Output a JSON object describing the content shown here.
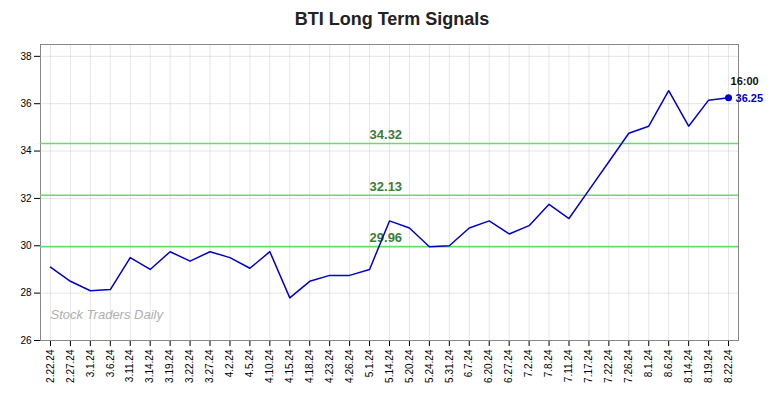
{
  "chart_data": {
    "type": "line",
    "title": "BTI Long Term Signals",
    "categories": [
      "2.22.24",
      "2.27.24",
      "3.1.24",
      "3.6.24",
      "3.11.24",
      "3.14.24",
      "3.19.24",
      "3.22.24",
      "3.27.24",
      "4.2.24",
      "4.5.24",
      "4.10.24",
      "4.15.24",
      "4.18.24",
      "4.23.24",
      "4.26.24",
      "5.1.24",
      "5.14.24",
      "5.20.24",
      "5.24.24",
      "5.31.24",
      "6.7.24",
      "6.20.24",
      "6.27.24",
      "7.2.24",
      "7.8.24",
      "7.11.24",
      "7.17.24",
      "7.22.24",
      "7.26.24",
      "8.1.24",
      "8.6.24",
      "8.14.24",
      "8.19.24",
      "8.22.24"
    ],
    "values": [
      29.1,
      28.5,
      28.1,
      28.15,
      29.5,
      29.0,
      29.75,
      29.35,
      29.75,
      29.5,
      29.05,
      29.75,
      27.8,
      28.5,
      28.75,
      28.75,
      29.0,
      31.05,
      30.75,
      29.96,
      30.0,
      30.75,
      31.05,
      30.5,
      30.85,
      31.75,
      31.15,
      32.35,
      33.55,
      34.75,
      35.05,
      36.55,
      35.05,
      36.15,
      36.25
    ],
    "color": "#0000cc",
    "hlines": [
      {
        "value": 29.96,
        "label": "29.96",
        "x": "5.1.24",
        "color": "#66dd66"
      },
      {
        "value": 32.13,
        "label": "32.13",
        "x": "5.1.24",
        "color": "#66dd66"
      },
      {
        "value": 34.32,
        "label": "34.32",
        "x": "5.1.24",
        "color": "#66dd66"
      }
    ],
    "annotations": [
      {
        "text": "Stock Traders Daily"
      },
      {
        "text": "16:00",
        "x": "8.22.24",
        "y": 36.25
      },
      {
        "text": "36.25",
        "x": "8.22.24",
        "y": 36.25
      }
    ],
    "ylim": [
      26,
      38.5
    ],
    "yticks": [
      26,
      28,
      30,
      32,
      34,
      36,
      38
    ],
    "grid": true
  }
}
